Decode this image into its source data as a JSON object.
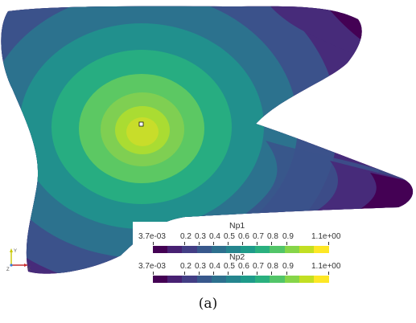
{
  "colorbars": [
    {
      "title": "Np1",
      "ticks": [
        "3.7e-03",
        "0.2",
        "0.3",
        "0.4",
        "0.5",
        "0.6",
        "0.7",
        "0.8",
        "0.9",
        "1.1e+00"
      ]
    },
    {
      "title": "Np2",
      "ticks": [
        "3.7e-03",
        "0.2",
        "0.3",
        "0.4",
        "0.5",
        "0.6",
        "0.7",
        "0.8",
        "0.9",
        "1.1e+00"
      ]
    }
  ],
  "colormap": [
    "#440154",
    "#482173",
    "#433e85",
    "#38588c",
    "#2d708e",
    "#25858e",
    "#1e9b8a",
    "#2ab07f",
    "#52c569",
    "#86d549",
    "#c2df23",
    "#fde725"
  ],
  "axes_triad": {
    "y": "Y",
    "x": "X",
    "z": "Z"
  },
  "caption": "(a)"
}
